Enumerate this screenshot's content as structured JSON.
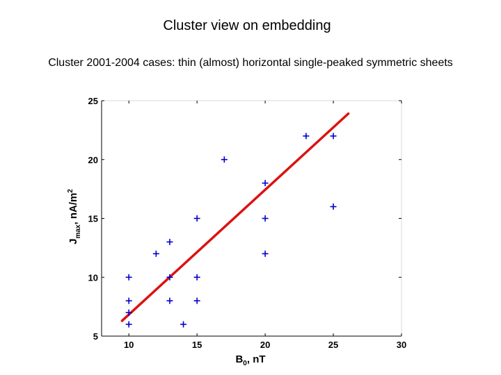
{
  "slide": {
    "title": "Cluster view on embedding",
    "subtitle": "Cluster 2001-2004 cases:   thin (almost) horizontal single-peaked symmetric sheets"
  },
  "chart_data": {
    "type": "scatter",
    "xlabel": {
      "main": "B",
      "sub": "0",
      "rest": ", nT"
    },
    "ylabel": {
      "main": "J",
      "sub": "max",
      "rest": ", nA/m",
      "sup": "2"
    },
    "xlim": [
      8,
      30
    ],
    "ylim": [
      5,
      25
    ],
    "xticks": [
      10,
      15,
      20,
      25,
      30
    ],
    "yticks": [
      5,
      10,
      15,
      20,
      25
    ],
    "grid": false,
    "colors": {
      "points": "#0000CC",
      "fit": "#DD1111",
      "axis": "#000000"
    },
    "marker": "+",
    "series": [
      {
        "name": "cases",
        "points": [
          [
            10,
            6
          ],
          [
            10,
            7
          ],
          [
            10,
            8
          ],
          [
            10,
            10
          ],
          [
            12,
            12
          ],
          [
            13,
            8
          ],
          [
            13,
            10
          ],
          [
            13,
            13
          ],
          [
            14,
            6
          ],
          [
            15,
            8
          ],
          [
            15,
            10
          ],
          [
            15,
            15
          ],
          [
            17,
            20
          ],
          [
            20,
            12
          ],
          [
            20,
            15
          ],
          [
            20,
            18
          ],
          [
            23,
            22
          ],
          [
            25,
            16
          ],
          [
            25,
            22
          ]
        ]
      }
    ],
    "fit_line": {
      "name": "linear fit",
      "x": [
        9.5,
        26.1
      ],
      "y": [
        6.3,
        23.9
      ]
    }
  }
}
